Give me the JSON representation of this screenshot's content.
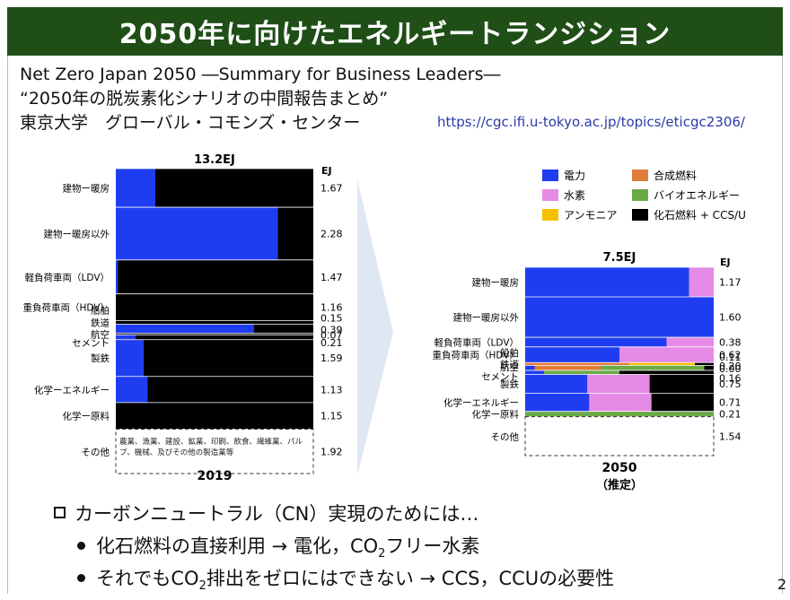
{
  "slide": {
    "title": "2050年に向けたエネルギートランジション",
    "source_line1": "Net Zero Japan 2050 ―Summary for Business Leaders―",
    "source_line2": "“2050年の脱炭素化シナリオの中間報告まとめ”",
    "source_line3": "東京大学　グローバル・コモンズ・センター",
    "url": "https://cgc.ifi.u-tokyo.ac.jp/topics/eticgc2306/",
    "page_number": "2"
  },
  "bullets": {
    "heading": "カーボンニュートラル（CN）実現のためには…",
    "item1_pre": "化石燃料の直接利用 → 電化，CO",
    "item1_sub": "2",
    "item1_post": "フリー水素",
    "item2_pre": "それでもCO",
    "item2_sub": "2",
    "item2_post": "排出をゼロにはできない → CCS，CCUの必要性"
  },
  "legend": [
    {
      "label": "電力",
      "color": "#1f3df0"
    },
    {
      "label": "合成燃料",
      "color": "#e07b39"
    },
    {
      "label": "水素",
      "color": "#e58ae6"
    },
    {
      "label": "バイオエネルギー",
      "color": "#6aaa46"
    },
    {
      "label": "アンモニア",
      "color": "#f4c000"
    },
    {
      "label": "化石燃料 + CCS/U",
      "color": "#000000"
    }
  ],
  "chart_data": [
    {
      "type": "bar",
      "title": "13.2EJ",
      "xlabel": "2019",
      "unit_label": "EJ",
      "note_label": "農業、漁業、建設、鉱業、印刷、飲食、繊維業、パルプ、機械、及びその他の製造業等",
      "categories": [
        "建物ー暖房",
        "建物ー暖房以外",
        "軽負荷車両（LDV）",
        "重負荷車両（HDV）",
        "船舶",
        "鉄道",
        "航空",
        "セメント",
        "製鉄",
        "化学ーエネルギー",
        "化学ー原料",
        "その他"
      ],
      "values": [
        "1.67",
        "2.28",
        "1.47",
        "1.16",
        "0.15",
        "0.39",
        "0.07",
        "0.21",
        "1.59",
        "1.13",
        "1.15",
        "1.92"
      ],
      "share": [
        {
          "電力": 0.2,
          "化石燃料 + CCS/U": 0.8
        },
        {
          "電力": 0.82,
          "化石燃料 + CCS/U": 0.18
        },
        {
          "電力": 0.01,
          "化石燃料 + CCS/U": 0.99
        },
        {
          "化石燃料 + CCS/U": 1.0
        },
        {
          "化石燃料 + CCS/U": 1.0
        },
        {
          "電力": 0.7,
          "化石燃料 + CCS/U": 0.3
        },
        {
          "化石燃料 + CCS/U": 1.0
        },
        {
          "電力": 0.1,
          "化石燃料 + CCS/U": 0.9
        },
        {
          "電力": 0.14,
          "化石燃料 + CCS/U": 0.86
        },
        {
          "電力": 0.16,
          "化石燃料 + CCS/U": 0.84
        },
        {
          "化石燃料 + CCS/U": 1.0
        },
        {}
      ]
    },
    {
      "type": "bar",
      "title": "7.5EJ",
      "xlabel": "2050",
      "xlabel2": "（推定）",
      "unit_label": "EJ",
      "categories": [
        "建物ー暖房",
        "建物ー暖房以外",
        "軽負荷車両（LDV）",
        "重負荷車両（HDV）",
        "船舶",
        "鉄道",
        "航空",
        "セメント",
        "製鉄",
        "化学ーエネルギー",
        "化学ー原料",
        "その他"
      ],
      "values": [
        "1.17",
        "1.60",
        "0.38",
        "0.62",
        "0.11",
        "0.20",
        "0.00",
        "0.16",
        "0.75",
        "0.71",
        "0.21",
        "1.54"
      ],
      "share": [
        {
          "電力": 0.87,
          "水素": 0.13
        },
        {
          "電力": 1.0
        },
        {
          "電力": 0.75,
          "水素": 0.25
        },
        {
          "電力": 0.5,
          "水素": 0.5
        },
        {
          "合成燃料": 0.55,
          "アンモニア": 0.35,
          "化石燃料 + CCS/U": 0.1
        },
        {
          "電力": 0.05,
          "合成燃料": 0.35,
          "バイオエネルギー": 0.55,
          "化石燃料 + CCS/U": 0.05
        },
        {
          "合成燃料": 1.0
        },
        {
          "電力": 0.1,
          "バイオエネルギー": 0.4,
          "化石燃料 + CCS/U": 0.5
        },
        {
          "電力": 0.33,
          "水素": 0.33,
          "化石燃料 + CCS/U": 0.34
        },
        {
          "電力": 0.34,
          "水素": 0.33,
          "化石燃料 + CCS/U": 0.33
        },
        {
          "バイオエネルギー": 1.0
        },
        {}
      ]
    }
  ]
}
